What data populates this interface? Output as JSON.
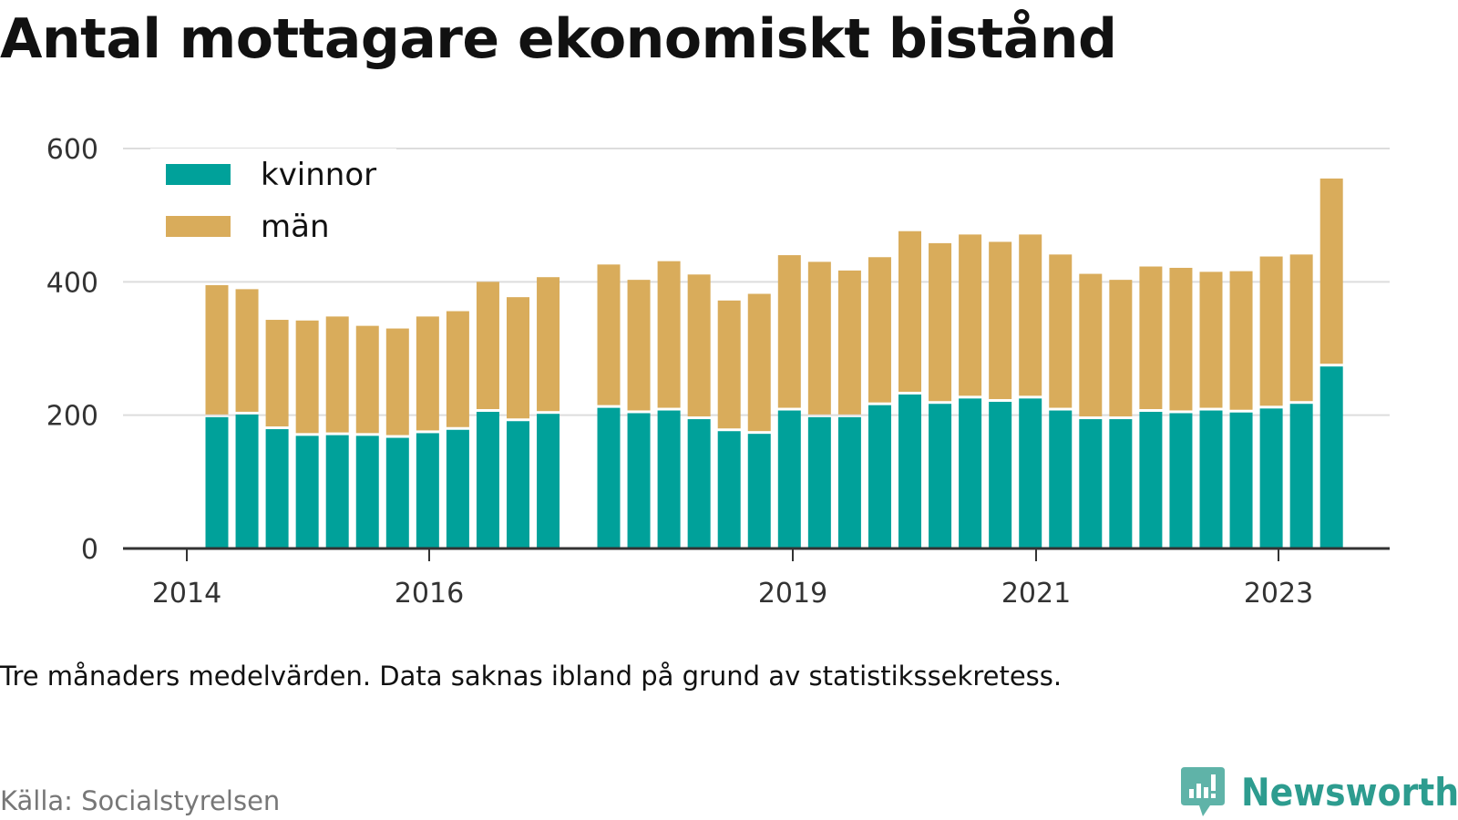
{
  "title": "Antal mottagare ekonomiskt bistånd",
  "note": "Tre månaders medelvärden. Data saknas ibland på grund av statistikssekretess.",
  "source": "Källa: Socialstyrelsen",
  "brand": "Newsworthy",
  "colors": {
    "kvinnor": "#00a19a",
    "man": "#d9ac5b",
    "grid": "#dddddd",
    "axis": "#333333",
    "brand": "#2d9c8f"
  },
  "chart_data": {
    "type": "bar",
    "stacked": true,
    "x_ticks": [
      "2014",
      "2016",
      "2019",
      "2021",
      "2023"
    ],
    "ylim": [
      0,
      600
    ],
    "y_ticks": [
      0,
      200,
      400,
      600
    ],
    "legend_position": "top-left",
    "grid": true,
    "series": [
      {
        "name": "kvinnor",
        "color": "#00a19a",
        "values": [
          197,
          201,
          179,
          169,
          170,
          169,
          166,
          173,
          178,
          205,
          191,
          202,
          211,
          203,
          207,
          194,
          176,
          172,
          207,
          197,
          197,
          215,
          231,
          217,
          225,
          220,
          225,
          207,
          194,
          194,
          205,
          203,
          207,
          204,
          210,
          217,
          273
        ]
      },
      {
        "name": "män",
        "color": "#d9ac5b",
        "values": [
          198,
          188,
          164,
          173,
          178,
          165,
          164,
          175,
          178,
          195,
          186,
          205,
          215,
          200,
          224,
          217,
          196,
          210,
          233,
          233,
          220,
          222,
          245,
          241,
          246,
          240,
          246,
          234,
          218,
          209,
          218,
          218,
          208,
          212,
          228,
          224,
          282
        ]
      }
    ]
  }
}
